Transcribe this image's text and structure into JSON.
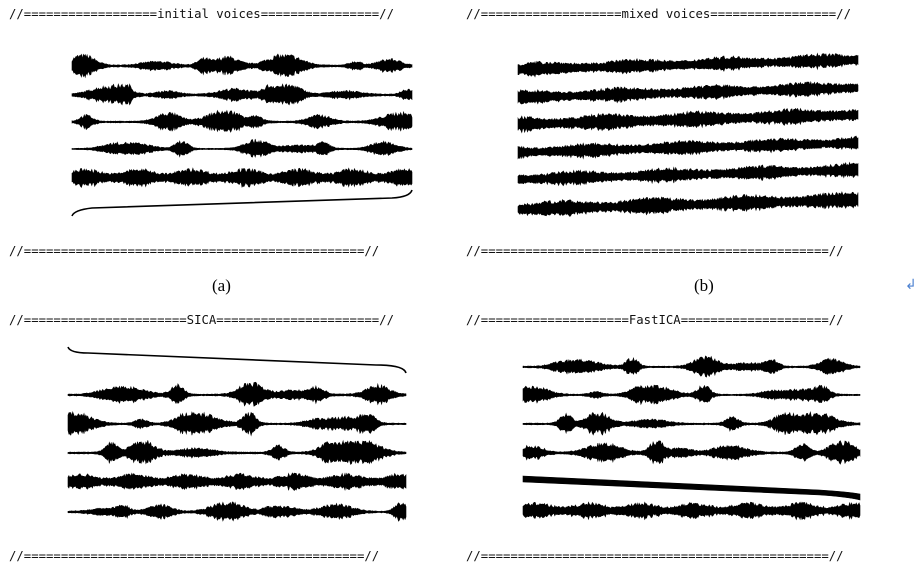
{
  "separators": {
    "a_top": "//==================initial voices================//",
    "b_top": "//===================mixed voices=================//",
    "ab_bottom_left": "//==============================================//",
    "ab_bottom_right": "//===============================================//",
    "c_top": "//======================SICA======================//",
    "d_top": "//====================FastICA====================//",
    "cd_bottom_left": "//==============================================//",
    "cd_bottom_right": "//===============================================//"
  },
  "captions": {
    "a": "(a)",
    "b": "(b)"
  },
  "margin_mark": "↲",
  "panels": {
    "a": {
      "title": "initial voices",
      "tracks": [
        "speech",
        "speech",
        "speech",
        "speech",
        "noise",
        "ramp-up"
      ]
    },
    "b": {
      "title": "mixed voices",
      "tracks": [
        "mixed",
        "mixed",
        "mixed",
        "mixed",
        "mixed",
        "mixed"
      ]
    },
    "c": {
      "title": "SICA",
      "tracks": [
        "ramp-down",
        "speech",
        "speech",
        "speech",
        "noise",
        "speech"
      ]
    },
    "d": {
      "title": "FastICA",
      "tracks": [
        "speech",
        "speech",
        "speech",
        "speech",
        "ramp-down-thick",
        "noise"
      ]
    }
  },
  "colors": {
    "waveform": "#000000",
    "mark": "#4a7fd0"
  }
}
